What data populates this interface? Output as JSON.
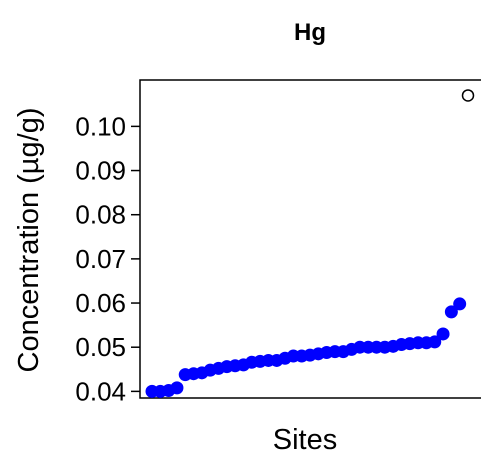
{
  "chart_data": {
    "type": "scatter",
    "title": "Hg",
    "xlabel": "Sites",
    "ylabel": "Concentration (µg/g)",
    "ylim": [
      0.0385,
      0.1105
    ],
    "yticks": [
      "0.04",
      "0.05",
      "0.06",
      "0.07",
      "0.08",
      "0.09",
      "0.10"
    ],
    "x_ticks_shown": false,
    "grid": false,
    "legend": "none",
    "series": [
      {
        "marker": "filled-circle",
        "color": "#0000ff",
        "values": [
          0.04,
          0.04,
          0.0402,
          0.0408,
          0.0438,
          0.044,
          0.0442,
          0.0448,
          0.0452,
          0.0456,
          0.0458,
          0.046,
          0.0466,
          0.0468,
          0.047,
          0.047,
          0.0475,
          0.048,
          0.048,
          0.0482,
          0.0485,
          0.0488,
          0.049,
          0.049,
          0.0495,
          0.05,
          0.05,
          0.05,
          0.05,
          0.0502,
          0.0506,
          0.0508,
          0.051,
          0.051,
          0.0512,
          0.053,
          0.058,
          0.0598
        ]
      },
      {
        "marker": "open-circle",
        "color": "#000000",
        "values": [
          0.107
        ]
      }
    ]
  }
}
